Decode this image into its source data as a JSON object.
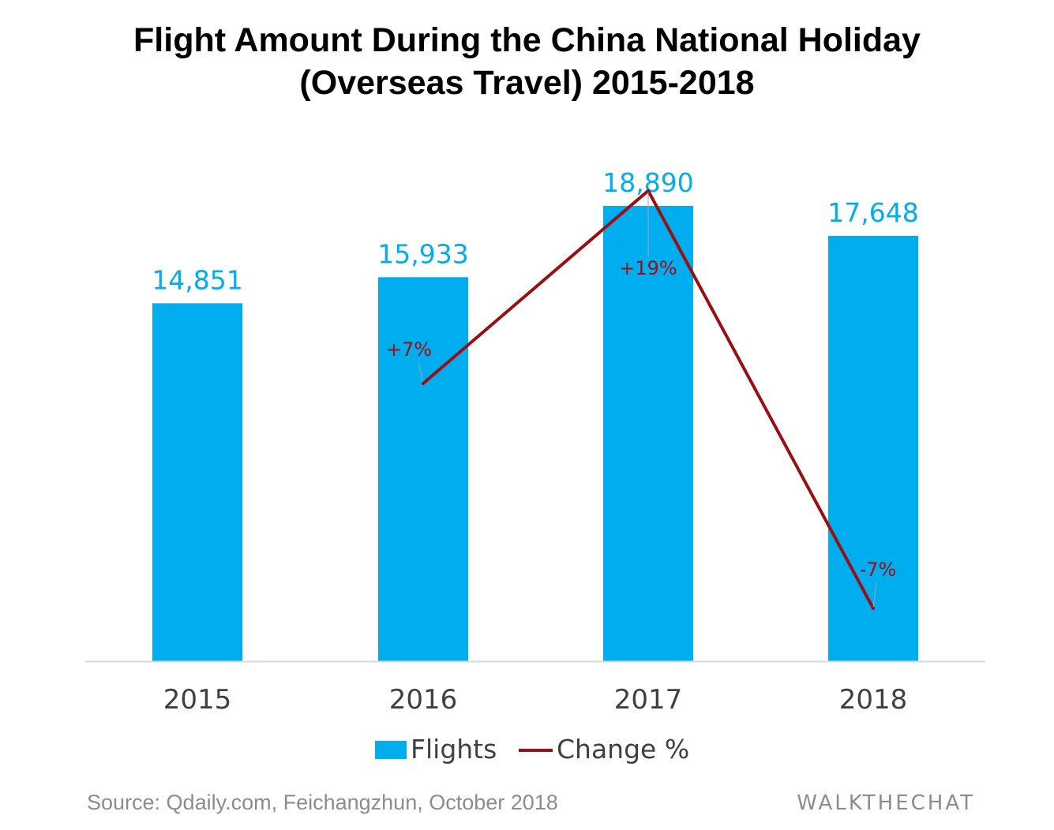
{
  "title": {
    "line1": "Flight Amount During the China National Holiday",
    "line2": "(Overseas Travel) 2015-2018"
  },
  "colors": {
    "bar": "#00AEEF",
    "line": "#9B0F14",
    "axis": "#D9D9D9",
    "tick_text": "#404040",
    "footer_text": "#8C8C8C"
  },
  "chart_data": {
    "type": "bar",
    "categories": [
      "2015",
      "2016",
      "2017",
      "2018"
    ],
    "series": [
      {
        "name": "Flights",
        "type": "bar",
        "values": [
          14851,
          15933,
          18890,
          17648
        ],
        "labels": [
          "14,851",
          "15,933",
          "18,890",
          "17,648"
        ]
      },
      {
        "name": "Change %",
        "type": "line",
        "values": [
          null,
          7,
          19,
          -7
        ],
        "labels": [
          "",
          "+7%",
          "+19%",
          "-7%"
        ]
      }
    ],
    "ylim": [
      0,
      20000
    ],
    "line_ylim": [
      -8,
      20
    ],
    "grid": false,
    "legend": "bottom"
  },
  "footer": {
    "source": "Source: Qdaily.com, Feichangzhun, October 2018",
    "brand": "WALKTHECHAT"
  }
}
